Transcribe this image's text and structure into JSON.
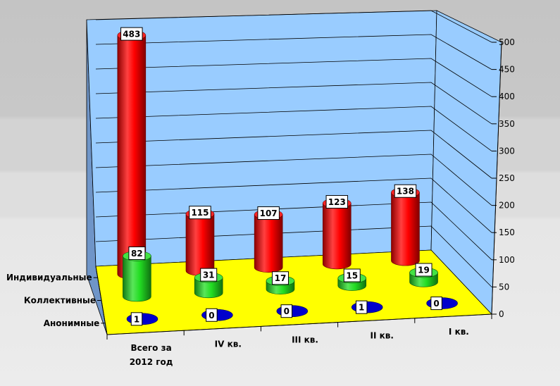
{
  "chart_data": {
    "type": "bar",
    "style": "3d-cylinder",
    "categories": [
      "Всего за 2012 год",
      "IV кв.",
      "III кв.",
      "II кв.",
      "I кв."
    ],
    "category_lines": [
      [
        "Всего за",
        "2012 год"
      ],
      [
        "IV кв."
      ],
      [
        "III кв."
      ],
      [
        "II кв."
      ],
      [
        "I кв."
      ]
    ],
    "series": [
      {
        "name": "Индивидуальные",
        "values": [
          483,
          115,
          107,
          123,
          138
        ],
        "color": "#ff0000"
      },
      {
        "name": "Коллективные",
        "values": [
          82,
          31,
          17,
          15,
          19
        ],
        "color": "#22dd22"
      },
      {
        "name": "Анонимные",
        "values": [
          1,
          0,
          0,
          1,
          0
        ],
        "color": "#0000cc"
      }
    ],
    "ylim": [
      0,
      500
    ],
    "yticks": [
      0,
      50,
      100,
      150,
      200,
      250,
      300,
      350,
      400,
      450,
      500
    ],
    "grid": true,
    "colors": {
      "back_wall": "#99ccff",
      "floor": "#ffff00",
      "label_box": "#ffffff"
    }
  }
}
